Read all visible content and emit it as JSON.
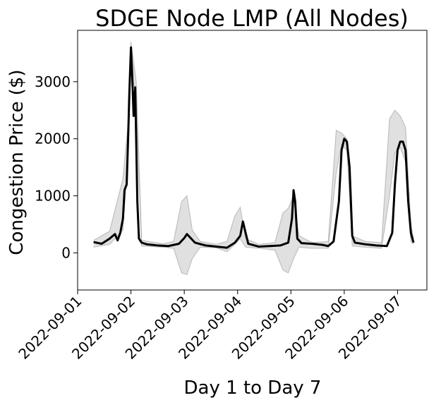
{
  "chart_data": {
    "type": "line",
    "title": "SDGE Node LMP (All Nodes)",
    "xlabel": "Day 1 to Day 7",
    "ylabel": "Congestion Price ($)",
    "x_ticks": [
      "2022-09-01",
      "2022-09-02",
      "2022-09-03",
      "2022-09-04",
      "2022-09-05",
      "2022-09-06",
      "2022-09-07"
    ],
    "y_ticks": [
      0,
      1000,
      2000,
      3000
    ],
    "xlim_days": [
      0,
      6.55
    ],
    "ylim": [
      -650,
      3900
    ],
    "grid": false,
    "legend": "none",
    "line_color": "#000000",
    "band_color": "#000000",
    "main_series": {
      "x": [
        0.3,
        0.45,
        0.6,
        0.7,
        0.75,
        0.8,
        0.85,
        0.88,
        0.92,
        0.95,
        0.97,
        1.0,
        1.02,
        1.05,
        1.08,
        1.12,
        1.15,
        1.2,
        1.3,
        1.5,
        1.7,
        1.9,
        2.0,
        2.05,
        2.1,
        2.2,
        2.4,
        2.6,
        2.8,
        2.95,
        3.05,
        3.1,
        3.2,
        3.4,
        3.6,
        3.8,
        3.95,
        4.02,
        4.05,
        4.08,
        4.12,
        4.2,
        4.4,
        4.6,
        4.7,
        4.8,
        4.9,
        4.95,
        5.0,
        5.05,
        5.1,
        5.15,
        5.2,
        5.4,
        5.6,
        5.8,
        5.9,
        5.95,
        6.0,
        6.05,
        6.1,
        6.15,
        6.2,
        6.25,
        6.3
      ],
      "y": [
        190,
        160,
        250,
        330,
        220,
        350,
        600,
        1100,
        1200,
        2100,
        2800,
        3600,
        3200,
        2400,
        2900,
        900,
        250,
        180,
        150,
        130,
        120,
        160,
        260,
        330,
        280,
        180,
        130,
        110,
        90,
        180,
        300,
        550,
        160,
        110,
        120,
        130,
        180,
        600,
        1100,
        900,
        250,
        170,
        160,
        140,
        120,
        200,
        900,
        1800,
        2000,
        1950,
        1500,
        300,
        180,
        150,
        130,
        120,
        350,
        1200,
        1800,
        1950,
        1950,
        1800,
        900,
        350,
        180
      ]
    },
    "spread": {
      "x": [
        0.3,
        0.6,
        0.85,
        0.95,
        1.0,
        1.1,
        1.2,
        1.6,
        1.8,
        1.95,
        2.05,
        2.15,
        2.3,
        2.6,
        2.8,
        2.95,
        3.05,
        3.15,
        3.4,
        3.7,
        3.85,
        3.95,
        4.05,
        4.15,
        4.4,
        4.7,
        4.85,
        4.95,
        5.05,
        5.15,
        5.4,
        5.7,
        5.85,
        5.95,
        6.05,
        6.15,
        6.25,
        6.3
      ],
      "low": [
        100,
        150,
        400,
        1800,
        3400,
        2600,
        120,
        100,
        80,
        -350,
        -380,
        -100,
        100,
        90,
        20,
        150,
        250,
        100,
        80,
        50,
        -300,
        -350,
        -100,
        100,
        80,
        80,
        1400,
        1900,
        1800,
        120,
        100,
        80,
        1000,
        1750,
        1850,
        1600,
        200,
        150
      ],
      "high": [
        220,
        380,
        1300,
        2300,
        3700,
        3000,
        220,
        160,
        200,
        900,
        1000,
        400,
        200,
        150,
        200,
        650,
        800,
        250,
        150,
        180,
        700,
        780,
        1000,
        300,
        180,
        200,
        2150,
        2100,
        2000,
        300,
        200,
        180,
        2350,
        2500,
        2400,
        2200,
        500,
        250
      ]
    }
  }
}
